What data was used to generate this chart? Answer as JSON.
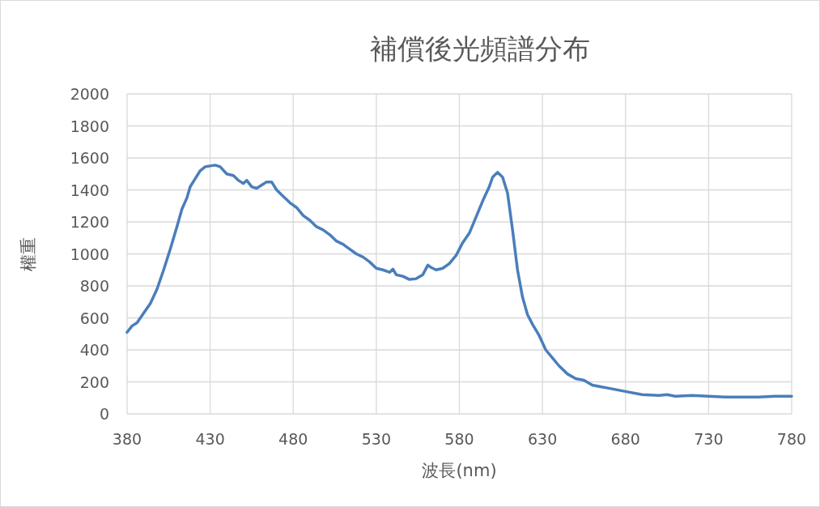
{
  "chart_data": {
    "type": "line",
    "title": "補償後光頻譜分布",
    "xlabel": "波長(nm)",
    "ylabel": "權重",
    "xlim": [
      380,
      780
    ],
    "ylim": [
      0,
      2000
    ],
    "xticks": [
      380,
      430,
      480,
      530,
      580,
      630,
      680,
      730,
      780
    ],
    "yticks": [
      0,
      200,
      400,
      600,
      800,
      1000,
      1200,
      1400,
      1600,
      1800,
      2000
    ],
    "grid": true,
    "marker": "none",
    "line_style": "solid",
    "series": [
      {
        "color": "#4a7ebb",
        "x": [
          380,
          383,
          386,
          390,
          394,
          398,
          402,
          406,
          410,
          413,
          416,
          418,
          421,
          424,
          427,
          430,
          433,
          436,
          440,
          444,
          447,
          450,
          452,
          455,
          458,
          461,
          464,
          467,
          470,
          474,
          478,
          482,
          486,
          490,
          494,
          498,
          502,
          506,
          510,
          514,
          518,
          522,
          526,
          530,
          534,
          538,
          540,
          542,
          546,
          550,
          554,
          558,
          561,
          563,
          566,
          570,
          574,
          578,
          582,
          586,
          590,
          594,
          598,
          600,
          603,
          606,
          609,
          612,
          615,
          618,
          621,
          624,
          628,
          632,
          636,
          640,
          645,
          650,
          655,
          660,
          665,
          670,
          675,
          680,
          690,
          700,
          705,
          710,
          720,
          730,
          740,
          750,
          760,
          770,
          780
        ],
        "values": [
          510,
          550,
          570,
          630,
          690,
          780,
          900,
          1030,
          1170,
          1280,
          1350,
          1420,
          1470,
          1520,
          1545,
          1550,
          1555,
          1545,
          1500,
          1490,
          1460,
          1440,
          1460,
          1420,
          1410,
          1430,
          1450,
          1450,
          1400,
          1360,
          1320,
          1290,
          1240,
          1210,
          1170,
          1150,
          1120,
          1080,
          1060,
          1030,
          1000,
          980,
          950,
          910,
          900,
          885,
          905,
          870,
          860,
          840,
          845,
          870,
          930,
          915,
          900,
          910,
          940,
          990,
          1070,
          1130,
          1230,
          1330,
          1420,
          1480,
          1510,
          1480,
          1380,
          1150,
          900,
          730,
          620,
          560,
          490,
          400,
          350,
          300,
          250,
          220,
          210,
          180,
          170,
          160,
          150,
          140,
          120,
          115,
          120,
          110,
          115,
          110,
          105,
          105,
          105,
          110,
          110
        ]
      }
    ]
  }
}
